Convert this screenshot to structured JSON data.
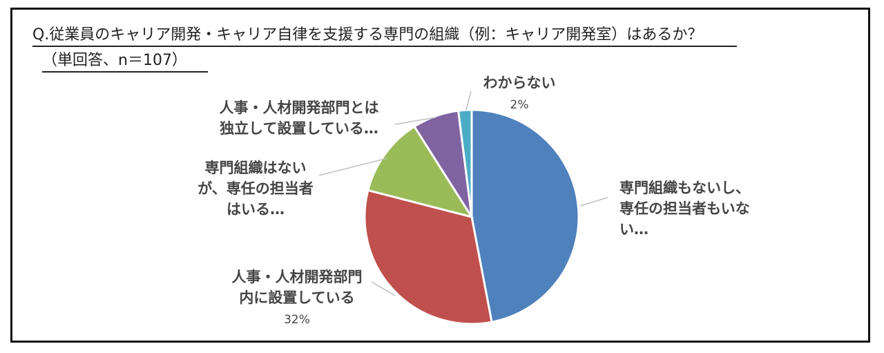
{
  "header": {
    "question": "Q.従業員のキャリア開発・キャリア自律を支援する専門の組織（例：キャリア開発室）はあるか？",
    "sample": "（単回答、n＝107）"
  },
  "chart_data": {
    "type": "pie",
    "title": "Q.従業員のキャリア開発・キャリア自律を支援する専門の組織（例：キャリア開発室）はあるか？",
    "subtitle": "（単回答、n＝107）",
    "start": "12 o'clock, clockwise",
    "slices": [
      {
        "label_lines": [
          "専門組織もないし、",
          "専任の担当者もいな",
          "い…"
        ],
        "value": 47,
        "value_label": "",
        "color": "#4F81BD"
      },
      {
        "label_lines": [
          "人事・人材開発部門",
          "内に設置している"
        ],
        "value": 32,
        "value_label": "32%",
        "color": "#C0504D"
      },
      {
        "label_lines": [
          "専門組織はない",
          "が、専任の担当者",
          "はいる…"
        ],
        "value": 12,
        "value_label": "",
        "color": "#9BBB59"
      },
      {
        "label_lines": [
          "人事・人材開発部門とは",
          "独立して設置している…"
        ],
        "value": 7,
        "value_label": "",
        "color": "#8064A2"
      },
      {
        "label_lines": [
          "わからない"
        ],
        "value": 2,
        "value_label": "2%",
        "color": "#4BACC6"
      }
    ]
  }
}
